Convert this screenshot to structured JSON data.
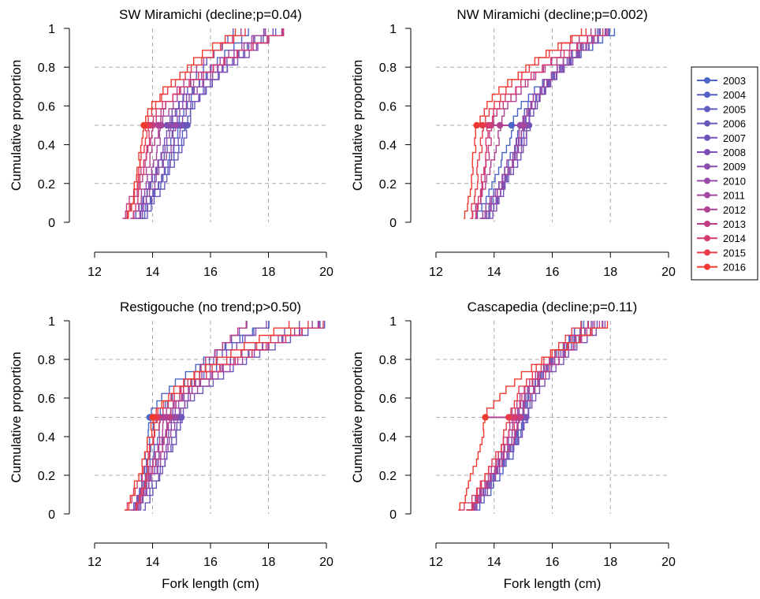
{
  "legend": {
    "years": [
      "2003",
      "2004",
      "2005",
      "2006",
      "2007",
      "2008",
      "2009",
      "2010",
      "2011",
      "2012",
      "2013",
      "2014",
      "2015",
      "2016"
    ],
    "colors": [
      "#4a64c8",
      "#5460c4",
      "#5e5cc0",
      "#6858bc",
      "#7254b8",
      "#7c50b4",
      "#8a4cae",
      "#964aa6",
      "#a2469e",
      "#b04292",
      "#c03e84",
      "#d63a6e",
      "#e83c48",
      "#f03a30"
    ]
  },
  "chart_data": [
    {
      "type": "line",
      "title": "SW Miramichi (decline;p=0.04)",
      "xlabel": "",
      "ylabel": "Cumulative proportion",
      "xlim": [
        12,
        20
      ],
      "ylim": [
        0,
        1
      ],
      "xticks": [
        12,
        14,
        16,
        18,
        20
      ],
      "yticks": [
        0,
        0.2,
        0.4,
        0.6,
        0.8,
        1
      ],
      "grid": true,
      "curve_min": 12.9,
      "curve_max_range": [
        16.8,
        18.5
      ],
      "medians": [
        14.9,
        15.1,
        14.7,
        15.2,
        14.5,
        15.0,
        14.6,
        14.8,
        14.3,
        14.2,
        14.0,
        13.9,
        13.8,
        13.7
      ]
    },
    {
      "type": "line",
      "title": "NW Miramichi (decline;p=0.002)",
      "xlabel": "",
      "ylabel": "Cumulative proportion",
      "xlim": [
        12,
        20
      ],
      "ylim": [
        0,
        1
      ],
      "xticks": [
        12,
        14,
        16,
        18,
        20
      ],
      "yticks": [
        0,
        0.2,
        0.4,
        0.6,
        0.8,
        1
      ],
      "grid": true,
      "curve_min": 13.0,
      "curve_max_range": [
        17.0,
        18.2
      ],
      "medians": [
        14.6,
        14.9,
        15.0,
        15.1,
        15.2,
        15.0,
        15.1,
        14.9,
        15.0,
        14.2,
        13.9,
        13.8,
        13.6,
        13.4
      ]
    },
    {
      "type": "line",
      "title": "Restigouche (no trend;p>0.50)",
      "xlabel": "Fork length (cm)",
      "ylabel": "Cumulative proportion",
      "xlim": [
        12,
        20
      ],
      "ylim": [
        0,
        1
      ],
      "xticks": [
        12,
        14,
        16,
        18,
        20
      ],
      "yticks": [
        0,
        0.2,
        0.4,
        0.6,
        0.8,
        1
      ],
      "grid": true,
      "curve_min": 12.9,
      "curve_max_range": [
        16.6,
        20.0
      ],
      "medians": [
        13.9,
        14.1,
        14.3,
        14.9,
        15.0,
        14.6,
        14.7,
        14.8,
        14.5,
        14.4,
        14.6,
        14.2,
        14.1,
        14.0
      ]
    },
    {
      "type": "line",
      "title": "Cascapedia (decline;p=0.11)",
      "xlabel": "Fork length (cm)",
      "ylabel": "Cumulative proportion",
      "xlim": [
        12,
        20
      ],
      "ylim": [
        0,
        1
      ],
      "xticks": [
        12,
        14,
        16,
        18,
        20
      ],
      "yticks": [
        0,
        0.2,
        0.4,
        0.6,
        0.8,
        1
      ],
      "grid": true,
      "curve_min": 12.6,
      "curve_max_range": [
        17.0,
        18.0
      ],
      "medians": [
        15.0,
        15.1,
        14.9,
        15.0,
        14.8,
        15.1,
        14.9,
        14.8,
        14.7,
        14.6,
        14.9,
        14.7,
        14.5,
        13.7
      ]
    }
  ]
}
